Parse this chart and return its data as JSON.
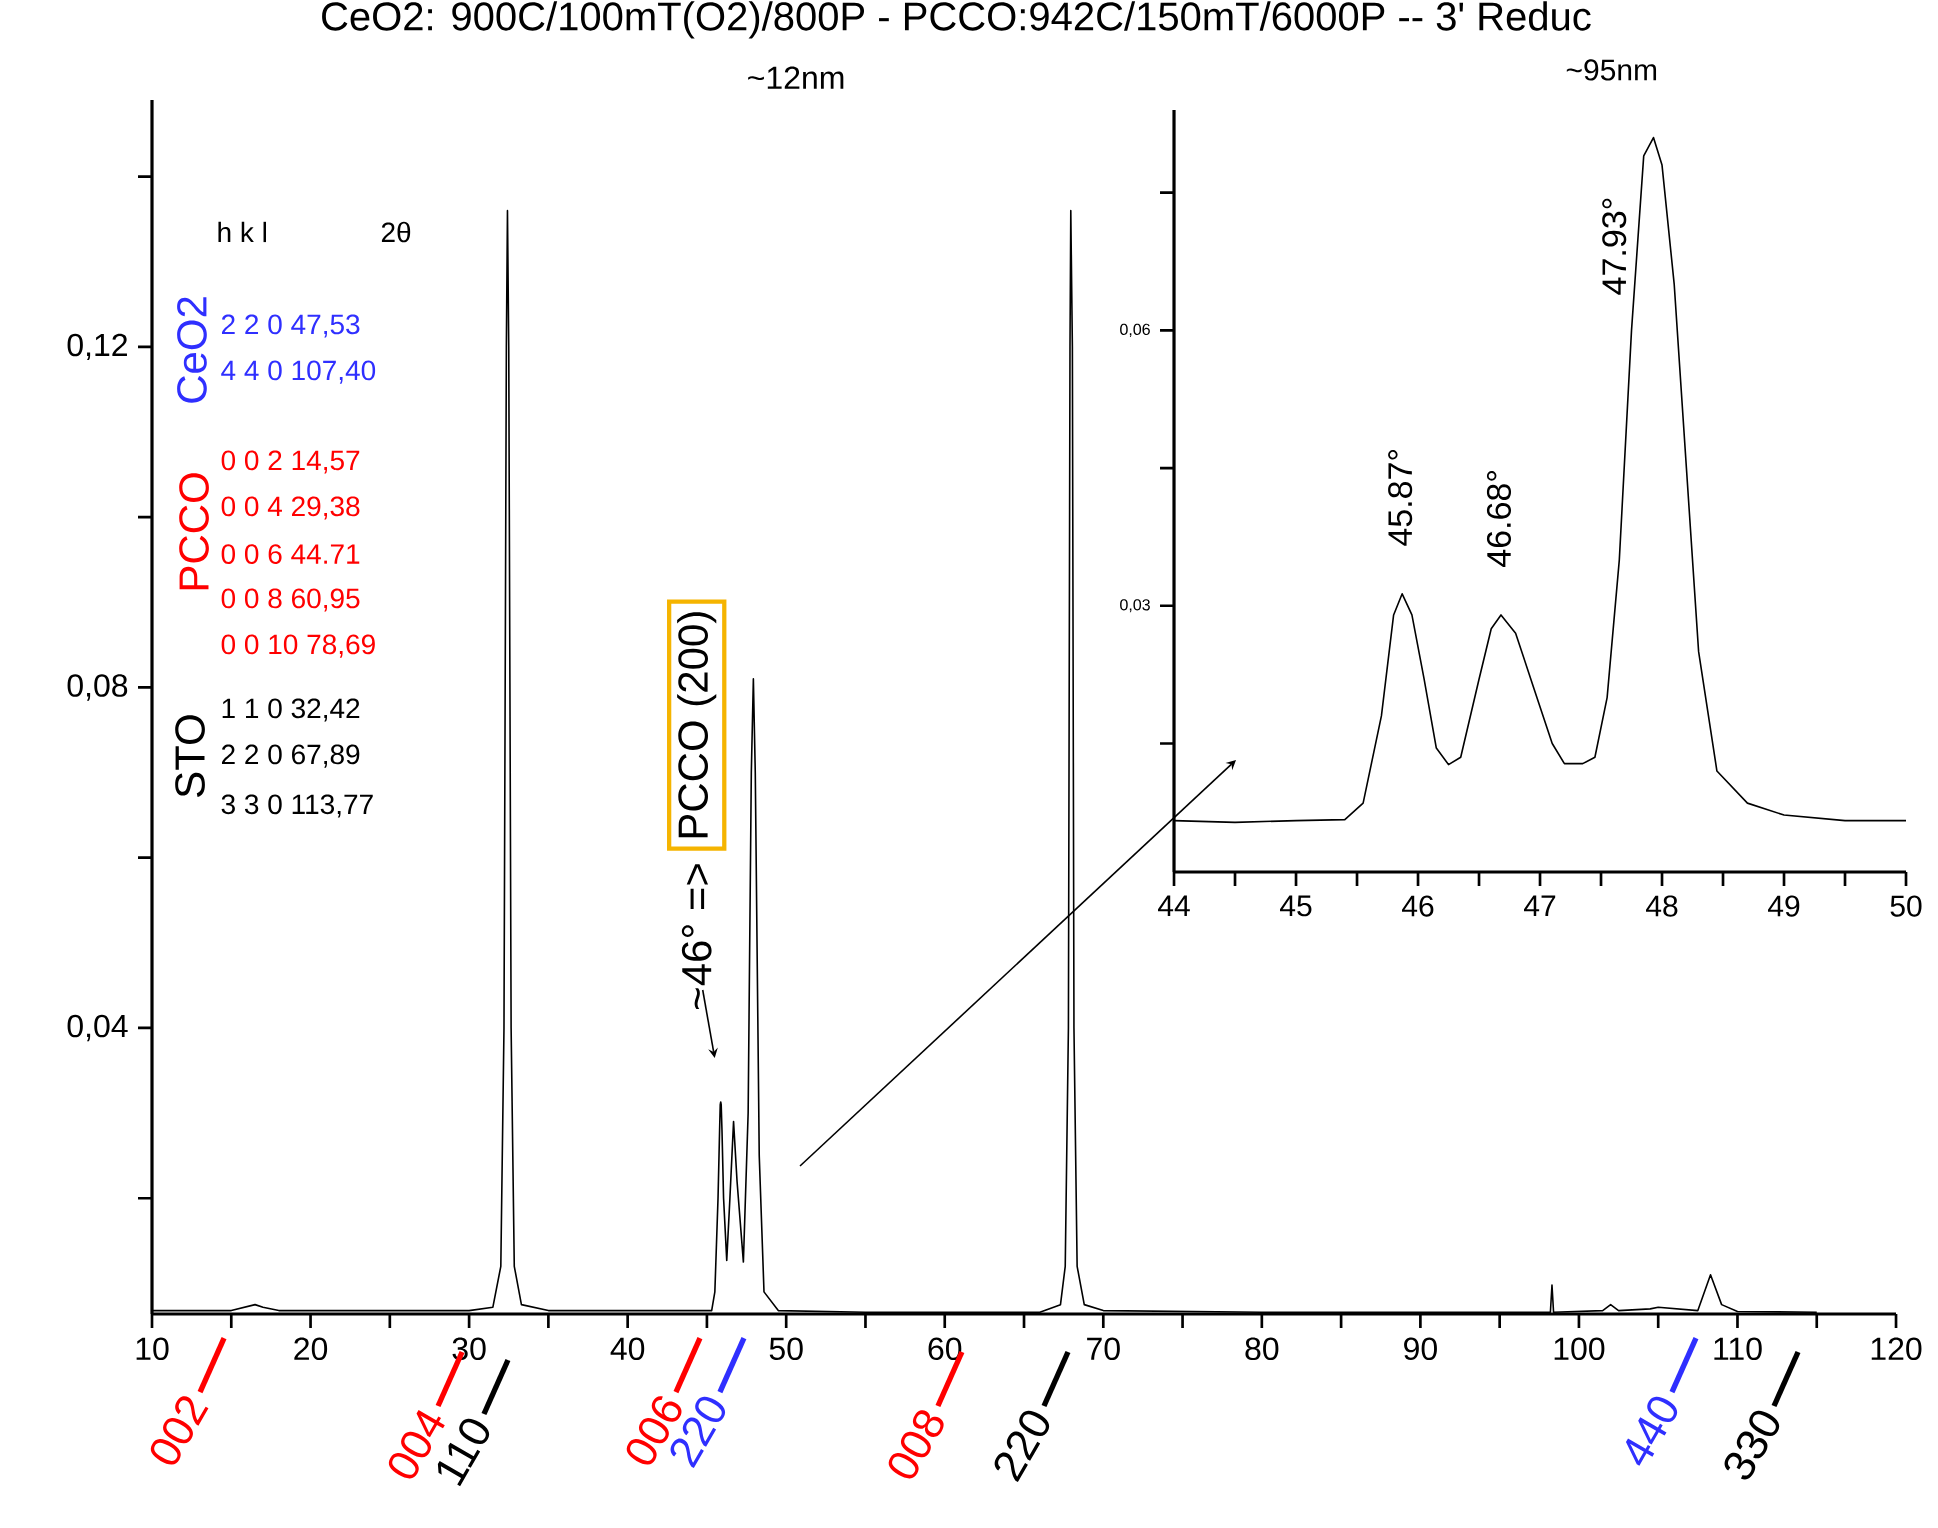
{
  "chart_data": [
    {
      "type": "line",
      "title": "CeO2: 900C/100mT(O2)/800P - PCCO:942C/150mT/6000P -- 3' Reduc",
      "xlim": [
        10,
        120
      ],
      "ylim": [
        0.0064,
        0.149
      ],
      "xticks": [
        10,
        {
          "value": 15,
          "label": null
        },
        20,
        {
          "value": 25,
          "label": null
        },
        30,
        {
          "value": 35,
          "label": null
        },
        40,
        {
          "value": 45,
          "label": null
        },
        50,
        {
          "value": 55,
          "label": null
        },
        60,
        {
          "value": 65,
          "label": null
        },
        70,
        {
          "value": 75,
          "label": null
        },
        80,
        {
          "value": 85,
          "label": null
        },
        90,
        {
          "value": 95,
          "label": null
        },
        100,
        {
          "value": 105,
          "label": null
        },
        110,
        {
          "value": 115,
          "label": null
        },
        120
      ],
      "yticks": [
        {
          "value": 0.02,
          "label": null
        },
        {
          "value": 0.04,
          "label": "0,04"
        },
        {
          "value": 0.06,
          "label": null
        },
        {
          "value": 0.08,
          "label": "0,08"
        },
        {
          "value": 0.1,
          "label": null
        },
        {
          "value": 0.12,
          "label": "0,12"
        },
        {
          "value": 0.14,
          "label": null
        }
      ],
      "series": [
        {
          "color": "#000000",
          "x": [
            10,
            15,
            16.5,
            17,
            18,
            25,
            30,
            31.5,
            32.0,
            32.2,
            32.35,
            32.42,
            32.5,
            32.65,
            32.85,
            33.3,
            35,
            40,
            45.3,
            45.5,
            45.7,
            45.8,
            45.84,
            45.87,
            45.9,
            45.95,
            46.05,
            46.25,
            46.45,
            46.68,
            46.9,
            47.3,
            47.6,
            47.8,
            47.93,
            48.05,
            48.3,
            48.6,
            49.5,
            55,
            60,
            66,
            67.3,
            67.6,
            67.8,
            67.9,
            67.95,
            68.05,
            68.15,
            68.35,
            68.8,
            70,
            80,
            90,
            98.2,
            98.3,
            98.4,
            101.5,
            102,
            102.5,
            104.5,
            105,
            107.5,
            108.3,
            109,
            110,
            115
          ],
          "values": [
            0.0068,
            0.0068,
            0.0075,
            0.0072,
            0.0068,
            0.0068,
            0.0068,
            0.0072,
            0.012,
            0.04,
            0.12,
            0.136,
            0.12,
            0.04,
            0.012,
            0.0075,
            0.0068,
            0.0068,
            0.0068,
            0.009,
            0.02,
            0.028,
            0.031,
            0.0313,
            0.031,
            0.028,
            0.02,
            0.0127,
            0.02,
            0.029,
            0.022,
            0.0125,
            0.03,
            0.07,
            0.081,
            0.07,
            0.025,
            0.009,
            0.0068,
            0.0066,
            0.0066,
            0.0066,
            0.0075,
            0.012,
            0.04,
            0.12,
            0.136,
            0.12,
            0.04,
            0.012,
            0.0075,
            0.0068,
            0.0066,
            0.0066,
            0.0066,
            0.0098,
            0.0066,
            0.0068,
            0.0075,
            0.0068,
            0.007,
            0.0072,
            0.0068,
            0.011,
            0.0075,
            0.0067,
            0.0066
          ]
        }
      ],
      "annotations": [
        "~12nm",
        {
          "text": "~46° =>",
          "x": 45.87,
          "y": 0.0313
        },
        "PCCO (200)",
        "h k l",
        "2θ",
        "CeO2",
        "2 2 0 47,53",
        "4 4 0 107,40",
        "PCCO",
        "0 0 2 14,57",
        "0 0 4 29,38",
        "0 0 6 44.71",
        "0 0 8 60,95",
        "0 0 10 78,69",
        "STO",
        "1 1 0 32,42",
        "2 2 0 67,89",
        "3 3 0 113,77",
        "002",
        "004",
        "110",
        "006",
        "220",
        "008",
        "220",
        "440",
        "330"
      ]
    },
    {
      "type": "line",
      "title": "~95nm",
      "xlim": [
        44,
        50
      ],
      "ylim": [
        0.001,
        0.084
      ],
      "xticks": [
        44,
        {
          "value": 44.5,
          "label": null
        },
        45,
        {
          "value": 45.5,
          "label": null
        },
        46,
        {
          "value": 46.5,
          "label": null
        },
        47,
        {
          "value": 47.5,
          "label": null
        },
        48,
        {
          "value": 48.5,
          "label": null
        },
        49,
        {
          "value": 49.5,
          "label": null
        },
        50
      ],
      "yticks": [
        {
          "value": 0.015,
          "label": null
        },
        {
          "value": 0.03,
          "label": "0,03"
        },
        {
          "value": 0.045,
          "label": null
        },
        {
          "value": 0.06,
          "label": "0,06"
        },
        {
          "value": 0.075,
          "label": null
        }
      ],
      "series": [
        {
          "color": "#000000",
          "x": [
            44,
            44.5,
            45,
            45.4,
            45.55,
            45.7,
            45.8,
            45.87,
            45.95,
            46.05,
            46.15,
            46.25,
            46.35,
            46.5,
            46.6,
            46.68,
            46.8,
            46.95,
            47.1,
            47.2,
            47.35,
            47.45,
            47.55,
            47.65,
            47.75,
            47.85,
            47.93,
            48.0,
            48.1,
            48.2,
            48.3,
            48.45,
            48.7,
            49,
            49.5,
            50
          ],
          "values": [
            0.0066,
            0.0064,
            0.0066,
            0.0067,
            0.0085,
            0.018,
            0.029,
            0.0313,
            0.029,
            0.022,
            0.0145,
            0.0127,
            0.0135,
            0.022,
            0.0275,
            0.029,
            0.027,
            0.021,
            0.015,
            0.0128,
            0.0128,
            0.0135,
            0.02,
            0.035,
            0.06,
            0.079,
            0.081,
            0.078,
            0.065,
            0.045,
            0.025,
            0.012,
            0.0085,
            0.0072,
            0.0066,
            0.0066
          ]
        }
      ],
      "annotations": [
        {
          "text": "45.87°",
          "x": 45.87,
          "y": 0.0313
        },
        {
          "text": "46.68°",
          "x": 46.68,
          "y": 0.029
        },
        {
          "text": "47.93°",
          "x": 47.93,
          "y": 0.081
        }
      ]
    }
  ]
}
